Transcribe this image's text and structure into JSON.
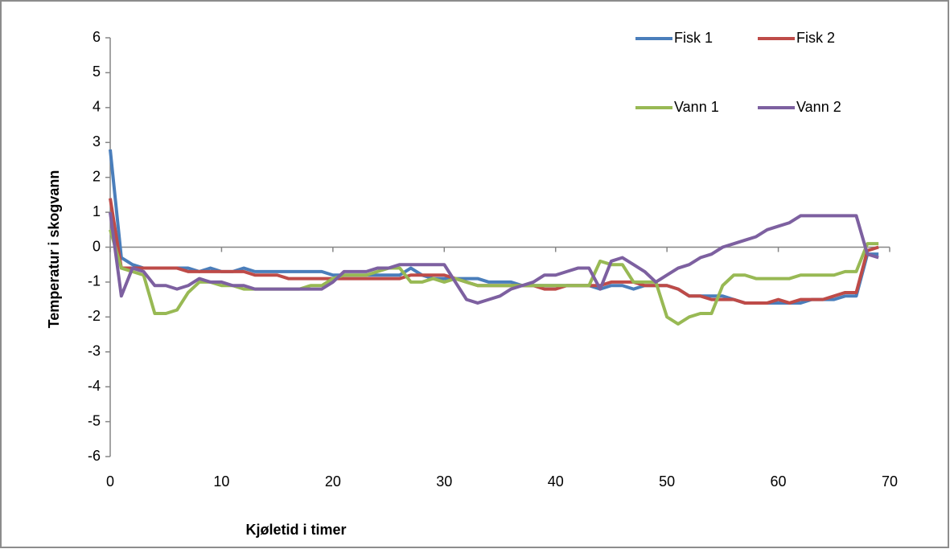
{
  "chart_data": {
    "type": "line",
    "x_label": "Kjøletid i timer",
    "y_label": "Temperatur i skogvann",
    "x": [
      0,
      1,
      2,
      3,
      4,
      5,
      6,
      7,
      8,
      9,
      10,
      11,
      12,
      13,
      14,
      15,
      16,
      17,
      18,
      19,
      20,
      21,
      22,
      23,
      24,
      25,
      26,
      27,
      28,
      29,
      30,
      31,
      32,
      33,
      34,
      35,
      36,
      37,
      38,
      39,
      40,
      41,
      42,
      43,
      44,
      45,
      46,
      47,
      48,
      49,
      50,
      51,
      52,
      53,
      54,
      55,
      56,
      57,
      58,
      59,
      60,
      61,
      62,
      63,
      64,
      65,
      66,
      67,
      68,
      69
    ],
    "series": [
      {
        "name": "Fisk 1",
        "color": "#4a7ebb",
        "values": [
          2.8,
          -0.3,
          -0.5,
          -0.6,
          -0.6,
          -0.6,
          -0.6,
          -0.6,
          -0.7,
          -0.6,
          -0.7,
          -0.7,
          -0.6,
          -0.7,
          -0.7,
          -0.7,
          -0.7,
          -0.7,
          -0.7,
          -0.7,
          -0.8,
          -0.8,
          -0.8,
          -0.8,
          -0.8,
          -0.8,
          -0.8,
          -0.6,
          -0.8,
          -0.9,
          -0.9,
          -0.9,
          -0.9,
          -0.9,
          -1.0,
          -1.0,
          -1.0,
          -1.1,
          -1.1,
          -1.1,
          -1.1,
          -1.1,
          -1.1,
          -1.1,
          -1.2,
          -1.1,
          -1.1,
          -1.2,
          -1.1,
          -1.1,
          -1.1,
          -1.2,
          -1.4,
          -1.4,
          -1.4,
          -1.4,
          -1.5,
          -1.6,
          -1.6,
          -1.6,
          -1.6,
          -1.6,
          -1.6,
          -1.5,
          -1.5,
          -1.5,
          -1.4,
          -1.4,
          -0.2,
          -0.2
        ]
      },
      {
        "name": "Fisk 2",
        "color": "#be4b48",
        "values": [
          1.4,
          -0.6,
          -0.6,
          -0.6,
          -0.6,
          -0.6,
          -0.6,
          -0.7,
          -0.7,
          -0.7,
          -0.7,
          -0.7,
          -0.7,
          -0.8,
          -0.8,
          -0.8,
          -0.9,
          -0.9,
          -0.9,
          -0.9,
          -0.9,
          -0.9,
          -0.9,
          -0.9,
          -0.9,
          -0.9,
          -0.9,
          -0.8,
          -0.8,
          -0.8,
          -0.8,
          -0.9,
          -1.0,
          -1.1,
          -1.1,
          -1.1,
          -1.1,
          -1.1,
          -1.1,
          -1.2,
          -1.2,
          -1.1,
          -1.1,
          -1.1,
          -1.1,
          -1.0,
          -1.0,
          -1.0,
          -1.1,
          -1.1,
          -1.1,
          -1.2,
          -1.4,
          -1.4,
          -1.5,
          -1.5,
          -1.5,
          -1.6,
          -1.6,
          -1.6,
          -1.5,
          -1.6,
          -1.5,
          -1.5,
          -1.5,
          -1.4,
          -1.3,
          -1.3,
          -0.1,
          0.0
        ]
      },
      {
        "name": "Vann 1",
        "color": "#98b954",
        "values": [
          0.5,
          -0.6,
          -0.7,
          -0.8,
          -1.9,
          -1.9,
          -1.8,
          -1.3,
          -1.0,
          -1.0,
          -1.1,
          -1.1,
          -1.2,
          -1.2,
          -1.2,
          -1.2,
          -1.2,
          -1.2,
          -1.1,
          -1.1,
          -0.9,
          -0.8,
          -0.8,
          -0.8,
          -0.7,
          -0.6,
          -0.6,
          -1.0,
          -1.0,
          -0.9,
          -1.0,
          -0.9,
          -1.0,
          -1.1,
          -1.1,
          -1.1,
          -1.1,
          -1.1,
          -1.1,
          -1.1,
          -1.1,
          -1.1,
          -1.1,
          -1.1,
          -0.4,
          -0.5,
          -0.5,
          -1.0,
          -1.0,
          -1.0,
          -2.0,
          -2.2,
          -2.0,
          -1.9,
          -1.9,
          -1.1,
          -0.8,
          -0.8,
          -0.9,
          -0.9,
          -0.9,
          -0.9,
          -0.8,
          -0.8,
          -0.8,
          -0.8,
          -0.7,
          -0.7,
          0.1,
          0.1
        ]
      },
      {
        "name": "Vann 2",
        "color": "#7d60a0",
        "values": [
          1.0,
          -1.4,
          -0.6,
          -0.7,
          -1.1,
          -1.1,
          -1.2,
          -1.1,
          -0.9,
          -1.0,
          -1.0,
          -1.1,
          -1.1,
          -1.2,
          -1.2,
          -1.2,
          -1.2,
          -1.2,
          -1.2,
          -1.2,
          -1.0,
          -0.7,
          -0.7,
          -0.7,
          -0.6,
          -0.6,
          -0.5,
          -0.5,
          -0.5,
          -0.5,
          -0.5,
          -1.0,
          -1.5,
          -1.6,
          -1.5,
          -1.4,
          -1.2,
          -1.1,
          -1.0,
          -0.8,
          -0.8,
          -0.7,
          -0.6,
          -0.6,
          -1.2,
          -0.4,
          -0.3,
          -0.5,
          -0.7,
          -1.0,
          -0.8,
          -0.6,
          -0.5,
          -0.3,
          -0.2,
          0.0,
          0.1,
          0.2,
          0.3,
          0.5,
          0.6,
          0.7,
          0.9,
          0.9,
          0.9,
          0.9,
          0.9,
          0.9,
          -0.2,
          -0.3
        ]
      }
    ],
    "xlim": [
      0,
      70
    ],
    "xticks": [
      0,
      10,
      20,
      30,
      40,
      50,
      60,
      70
    ],
    "ylim": [
      -6,
      6
    ],
    "yticks": [
      -6,
      -5,
      -4,
      -3,
      -2,
      -1,
      0,
      1,
      2,
      3,
      4,
      5,
      6
    ],
    "legend": "top-right"
  }
}
